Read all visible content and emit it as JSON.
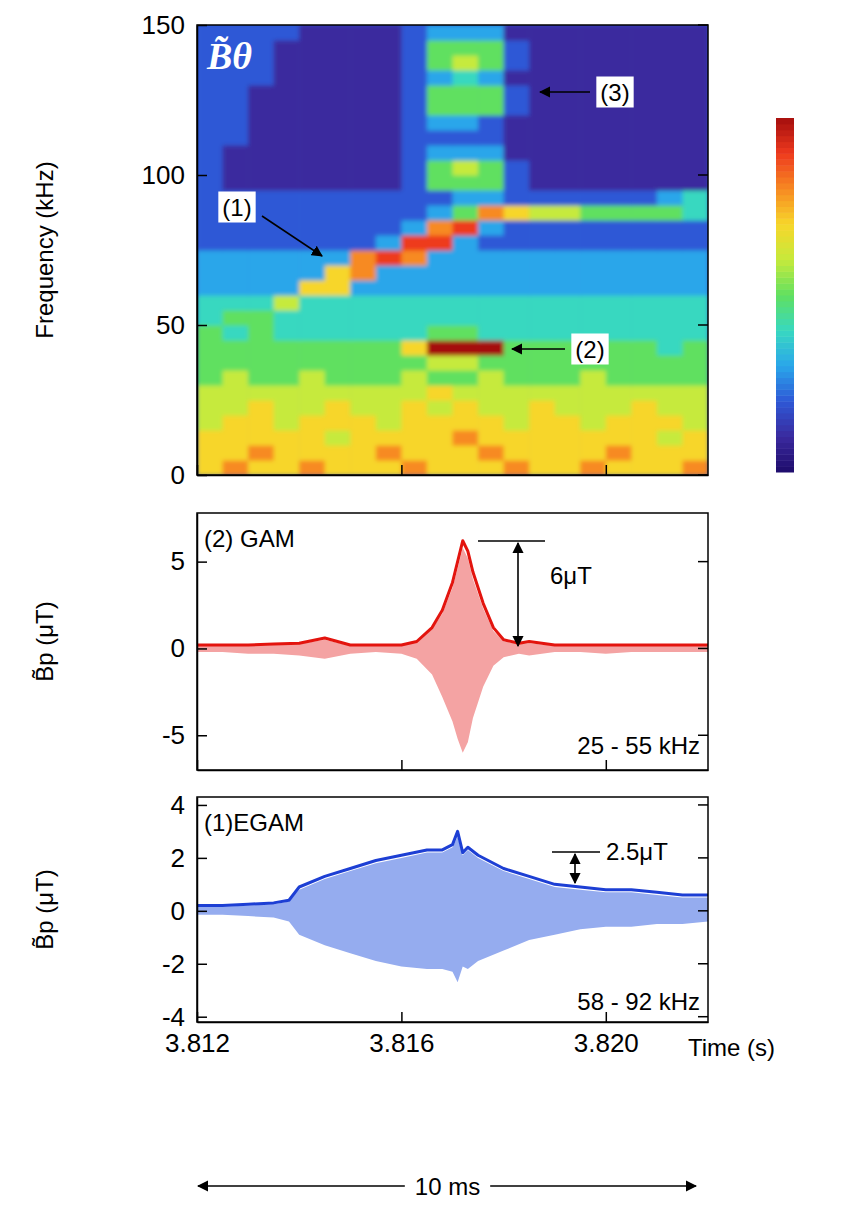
{
  "chart_data": [
    {
      "type": "heatmap",
      "title": "B̃θ",
      "y_label": "Frequency (kHz)",
      "xlim": [
        3.812,
        3.822
      ],
      "ylim": [
        0,
        150
      ],
      "xticks": [
        3.812,
        3.816,
        3.82
      ],
      "yticks": [
        0,
        50,
        100,
        150
      ],
      "tick_labels": "y",
      "x_bins": [
        3.812,
        3.8125,
        3.813,
        3.8135,
        3.814,
        3.8145,
        3.815,
        3.8155,
        3.816,
        3.8165,
        3.817,
        3.8175,
        3.818,
        3.8185,
        3.819,
        3.8195,
        3.82,
        3.8205,
        3.821,
        3.8215,
        3.822
      ],
      "y_bins": [
        0,
        5,
        10,
        15,
        20,
        25,
        30,
        35,
        40,
        45,
        50,
        55,
        60,
        65,
        70,
        75,
        80,
        85,
        90,
        95,
        100,
        105,
        110,
        115,
        120,
        125,
        130,
        135,
        140,
        145,
        150
      ],
      "cells": [
        [
          7,
          8,
          7,
          7,
          8,
          7,
          7,
          7,
          8,
          7,
          7,
          7,
          8,
          7,
          7,
          8,
          7,
          7,
          7,
          8
        ],
        [
          7,
          7,
          8,
          7,
          7,
          7,
          7,
          8,
          7,
          7,
          7,
          8,
          7,
          7,
          7,
          7,
          8,
          7,
          7,
          7
        ],
        [
          7,
          7,
          7,
          7,
          7,
          6,
          7,
          7,
          7,
          7,
          8,
          7,
          7,
          7,
          7,
          7,
          7,
          7,
          6,
          7
        ],
        [
          6,
          7,
          7,
          6,
          7,
          7,
          7,
          6,
          7,
          7,
          7,
          7,
          6,
          7,
          7,
          6,
          7,
          7,
          7,
          6
        ],
        [
          6,
          6,
          7,
          6,
          6,
          7,
          6,
          6,
          7,
          6,
          7,
          6,
          6,
          7,
          6,
          6,
          6,
          7,
          6,
          6
        ],
        [
          6,
          6,
          6,
          6,
          6,
          6,
          6,
          6,
          6,
          7,
          6,
          6,
          6,
          6,
          6,
          6,
          6,
          6,
          6,
          6
        ],
        [
          5,
          6,
          5,
          5,
          6,
          5,
          5,
          5,
          6,
          5,
          5,
          6,
          5,
          5,
          5,
          6,
          5,
          5,
          5,
          5
        ],
        [
          5,
          5,
          5,
          5,
          5,
          5,
          5,
          5,
          5,
          6,
          6,
          5,
          5,
          5,
          5,
          5,
          5,
          5,
          5,
          5
        ],
        [
          5,
          5,
          5,
          5,
          5,
          5,
          5,
          5,
          7,
          10,
          10,
          10,
          5,
          5,
          5,
          5,
          5,
          5,
          4,
          5
        ],
        [
          5,
          4,
          5,
          4,
          4,
          4,
          4,
          4,
          4,
          5,
          5,
          4,
          4,
          4,
          4,
          4,
          4,
          4,
          4,
          4
        ],
        [
          4,
          5,
          5,
          4,
          4,
          4,
          4,
          4,
          4,
          4,
          4,
          4,
          4,
          4,
          4,
          4,
          4,
          4,
          4,
          4
        ],
        [
          4,
          4,
          4,
          6,
          4,
          4,
          4,
          4,
          4,
          4,
          4,
          4,
          4,
          4,
          4,
          4,
          4,
          4,
          4,
          4
        ],
        [
          3,
          3,
          3,
          3,
          7,
          7,
          3,
          3,
          3,
          3,
          3,
          3,
          3,
          3,
          3,
          3,
          3,
          3,
          3,
          3
        ],
        [
          3,
          3,
          3,
          3,
          3,
          7,
          8,
          3,
          3,
          3,
          3,
          3,
          3,
          3,
          3,
          3,
          3,
          3,
          3,
          3
        ],
        [
          3,
          3,
          3,
          3,
          3,
          3,
          8,
          9,
          8,
          3,
          3,
          3,
          3,
          3,
          3,
          3,
          3,
          3,
          3,
          3
        ],
        [
          2,
          2,
          2,
          2,
          2,
          2,
          2,
          3,
          9,
          9,
          3,
          2,
          2,
          2,
          2,
          2,
          2,
          2,
          2,
          2
        ],
        [
          2,
          2,
          2,
          2,
          2,
          2,
          2,
          2,
          3,
          8,
          9,
          3,
          2,
          2,
          2,
          2,
          2,
          2,
          2,
          2
        ],
        [
          2,
          2,
          2,
          2,
          2,
          2,
          2,
          2,
          2,
          3,
          5,
          8,
          7,
          6,
          6,
          5,
          5,
          5,
          5,
          4
        ],
        [
          2,
          2,
          2,
          2,
          2,
          2,
          2,
          2,
          2,
          2,
          3,
          3,
          2,
          2,
          2,
          2,
          2,
          2,
          3,
          4
        ],
        [
          2,
          1,
          1,
          1,
          1,
          1,
          1,
          1,
          2,
          5,
          5,
          5,
          2,
          1,
          1,
          1,
          1,
          1,
          1,
          1
        ],
        [
          2,
          1,
          1,
          1,
          1,
          1,
          1,
          1,
          2,
          5,
          6,
          5,
          2,
          1,
          1,
          1,
          1,
          1,
          1,
          1
        ],
        [
          2,
          1,
          1,
          1,
          1,
          1,
          1,
          1,
          2,
          3,
          3,
          3,
          1,
          1,
          1,
          1,
          1,
          1,
          1,
          1
        ],
        [
          2,
          2,
          1,
          1,
          1,
          1,
          1,
          1,
          2,
          2,
          2,
          2,
          1,
          1,
          1,
          1,
          1,
          1,
          1,
          1
        ],
        [
          2,
          2,
          1,
          1,
          1,
          1,
          1,
          1,
          2,
          3,
          3,
          2,
          1,
          1,
          1,
          1,
          1,
          1,
          1,
          1
        ],
        [
          2,
          2,
          1,
          1,
          1,
          1,
          1,
          1,
          2,
          5,
          5,
          5,
          2,
          1,
          1,
          1,
          1,
          1,
          1,
          1
        ],
        [
          2,
          2,
          1,
          1,
          1,
          1,
          1,
          1,
          2,
          5,
          5,
          5,
          2,
          1,
          1,
          1,
          1,
          1,
          1,
          1
        ],
        [
          2,
          2,
          2,
          1,
          1,
          1,
          1,
          1,
          2,
          3,
          4,
          3,
          1,
          1,
          1,
          1,
          1,
          1,
          1,
          1
        ],
        [
          2,
          2,
          2,
          1,
          1,
          1,
          1,
          1,
          2,
          5,
          6,
          5,
          2,
          1,
          1,
          1,
          1,
          1,
          1,
          1
        ],
        [
          2,
          2,
          2,
          1,
          1,
          1,
          1,
          1,
          2,
          5,
          5,
          5,
          2,
          1,
          1,
          1,
          1,
          1,
          1,
          1
        ],
        [
          2,
          2,
          2,
          2,
          1,
          1,
          1,
          1,
          2,
          3,
          3,
          3,
          1,
          1,
          1,
          1,
          1,
          1,
          1,
          1
        ]
      ],
      "colorbar_range": [
        0,
        10
      ],
      "annotations": [
        "(1)",
        "(2)",
        "(3)"
      ]
    },
    {
      "type": "line",
      "y_label": "B̃p (μT)",
      "xlim": [
        3.812,
        3.822
      ],
      "ylim": [
        -7,
        7.8
      ],
      "xticks": [
        3.812,
        3.816,
        3.82
      ],
      "yticks": [
        -5,
        0,
        5
      ],
      "tick_labels": "y",
      "x": [
        3.812,
        3.8125,
        3.813,
        3.8135,
        3.814,
        3.8145,
        3.815,
        3.8155,
        3.816,
        3.8163,
        3.8166,
        3.8168,
        3.817,
        3.8171,
        3.8172,
        3.8173,
        3.8174,
        3.8176,
        3.8178,
        3.818,
        3.8183,
        3.8185,
        3.819,
        3.8195,
        3.82,
        3.8205,
        3.821,
        3.8215,
        3.822
      ],
      "series": [
        {
          "type": "area",
          "color": "#f4a3a3",
          "values": [
            0.15,
            0.15,
            0.15,
            0.2,
            0.25,
            0.5,
            0.15,
            0.15,
            0.15,
            0.35,
            1.1,
            2.0,
            3.5,
            4.6,
            5.8,
            5.2,
            4.0,
            2.3,
            1.0,
            0.4,
            0.25,
            0.3,
            0.15,
            0.15,
            0.15,
            0.15,
            0.15,
            0.15,
            0.15
          ],
          "lower": [
            -0.2,
            -0.2,
            -0.3,
            -0.3,
            -0.4,
            -0.6,
            -0.3,
            -0.2,
            -0.3,
            -0.6,
            -1.5,
            -2.8,
            -4.2,
            -5.2,
            -6.0,
            -5.4,
            -4.0,
            -2.2,
            -1.0,
            -0.5,
            -0.3,
            -0.4,
            -0.2,
            -0.2,
            -0.3,
            -0.2,
            -0.2,
            -0.2,
            -0.2
          ]
        },
        {
          "type": "line",
          "color": "#e3140e",
          "values": [
            0.2,
            0.2,
            0.2,
            0.25,
            0.3,
            0.6,
            0.2,
            0.2,
            0.2,
            0.4,
            1.2,
            2.2,
            3.8,
            5.0,
            6.2,
            5.6,
            4.4,
            2.6,
            1.2,
            0.5,
            0.3,
            0.4,
            0.2,
            0.2,
            0.2,
            0.2,
            0.2,
            0.2,
            0.2
          ]
        }
      ],
      "annotations": [
        "(2) GAM",
        "6μT",
        "25 - 55 kHz"
      ]
    },
    {
      "type": "line",
      "y_label": "B̃p (μT)",
      "x_label": "Time (s)",
      "xlim": [
        3.812,
        3.822
      ],
      "ylim": [
        -4.2,
        4.3
      ],
      "xticks": [
        3.812,
        3.816,
        {
          "value": 3.82,
          "label": "3.820"
        }
      ],
      "yticks": [
        -4,
        -2,
        0,
        2,
        4
      ],
      "x": [
        3.812,
        3.8125,
        3.813,
        3.8135,
        3.8138,
        3.814,
        3.8145,
        3.815,
        3.8155,
        3.816,
        3.8165,
        3.8168,
        3.817,
        3.8171,
        3.8172,
        3.8173,
        3.8175,
        3.818,
        3.8185,
        3.819,
        3.8195,
        3.82,
        3.8205,
        3.821,
        3.8215,
        3.822
      ],
      "series": [
        {
          "type": "area",
          "color": "#95acef",
          "values": [
            0.15,
            0.15,
            0.2,
            0.25,
            0.35,
            0.8,
            1.2,
            1.5,
            1.8,
            2.0,
            2.2,
            2.2,
            2.4,
            2.8,
            2.1,
            2.3,
            2.0,
            1.5,
            1.2,
            0.9,
            0.8,
            0.7,
            0.7,
            0.6,
            0.5,
            0.5
          ],
          "lower": [
            -0.15,
            -0.15,
            -0.2,
            -0.25,
            -0.4,
            -0.9,
            -1.3,
            -1.6,
            -1.9,
            -2.1,
            -2.2,
            -2.2,
            -2.3,
            -2.7,
            -2.1,
            -2.2,
            -1.9,
            -1.5,
            -1.1,
            -0.9,
            -0.7,
            -0.6,
            -0.6,
            -0.5,
            -0.5,
            -0.4
          ]
        },
        {
          "type": "line",
          "color": "#1d3fd4",
          "values": [
            0.2,
            0.2,
            0.25,
            0.3,
            0.4,
            0.9,
            1.3,
            1.6,
            1.9,
            2.1,
            2.3,
            2.3,
            2.5,
            3.0,
            2.2,
            2.4,
            2.1,
            1.6,
            1.3,
            1.0,
            0.9,
            0.8,
            0.8,
            0.7,
            0.6,
            0.6
          ]
        }
      ],
      "annotations": [
        "(1)EGAM",
        "2.5μT",
        "58 - 92 kHz",
        "10 ms"
      ]
    }
  ]
}
